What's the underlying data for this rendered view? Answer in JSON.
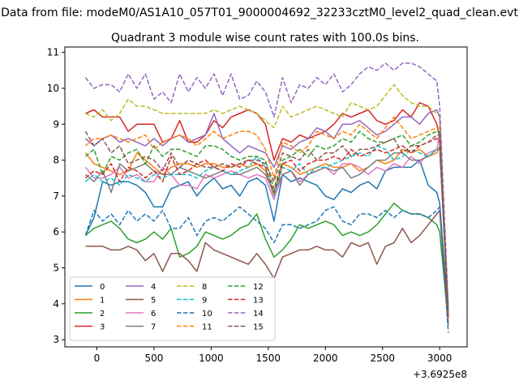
{
  "chart_data": {
    "type": "line",
    "suptitle": "Data from file: modeM0/AS1A10_057T01_9000004692_32233cztM0_level2_quad_clean.evt",
    "title": "Quadrant 3 module wise count rates with 100.0s bins.",
    "xlabel": "",
    "ylabel": "",
    "x_offset_label": "+3.6925e8",
    "xlim": [
      -280,
      3240
    ],
    "ylim": [
      2.8,
      11.15
    ],
    "xticks": [
      0,
      500,
      1000,
      1500,
      2000,
      2500,
      3000
    ],
    "xtick_labels": [
      "0",
      "500",
      "1000",
      "1500",
      "2000",
      "2500",
      "3000"
    ],
    "yticks": [
      3,
      4,
      5,
      6,
      7,
      8,
      9,
      10,
      11
    ],
    "ytick_labels": [
      "3",
      "4",
      "5",
      "6",
      "7",
      "8",
      "9",
      "10",
      "11"
    ],
    "x": [
      -100,
      -25,
      50,
      125,
      200,
      275,
      350,
      425,
      500,
      575,
      650,
      725,
      800,
      875,
      950,
      1025,
      1100,
      1175,
      1250,
      1325,
      1400,
      1475,
      1550,
      1625,
      1700,
      1775,
      1850,
      1925,
      2000,
      2075,
      2150,
      2225,
      2300,
      2375,
      2450,
      2525,
      2600,
      2675,
      2750,
      2825,
      2900,
      2975,
      3000,
      3075
    ],
    "legend_position": "lower-left",
    "legend_columns": 4,
    "series": [
      {
        "name": "0",
        "color": "#1f77b4",
        "dash": "solid",
        "values": [
          5.9,
          6.4,
          7.4,
          7.3,
          7.4,
          7.4,
          7.3,
          7.1,
          6.7,
          6.7,
          7.2,
          7.3,
          7.4,
          7.0,
          7.3,
          7.5,
          7.2,
          7.3,
          7.0,
          7.4,
          7.5,
          7.3,
          6.3,
          7.6,
          7.4,
          7.5,
          7.4,
          7.3,
          7.0,
          6.9,
          7.2,
          7.1,
          7.3,
          7.4,
          7.2,
          7.7,
          7.8,
          7.8,
          7.8,
          8.0,
          7.3,
          7.1,
          6.8,
          3.6
        ]
      },
      {
        "name": "1",
        "color": "#ff7f0e",
        "dash": "solid",
        "values": [
          8.2,
          7.9,
          7.8,
          7.7,
          7.6,
          7.7,
          8.2,
          8.0,
          7.8,
          7.6,
          7.8,
          7.9,
          7.9,
          7.8,
          7.9,
          7.9,
          7.8,
          7.8,
          7.9,
          7.8,
          7.9,
          7.7,
          7.0,
          7.9,
          7.8,
          7.6,
          7.7,
          7.8,
          7.9,
          7.8,
          7.8,
          7.9,
          7.7,
          7.8,
          8.0,
          7.9,
          8.0,
          8.3,
          8.2,
          8.3,
          8.1,
          8.2,
          8.4,
          3.7
        ]
      },
      {
        "name": "2",
        "color": "#2ca02c",
        "dash": "solid",
        "values": [
          5.9,
          6.1,
          6.2,
          6.3,
          6.1,
          5.8,
          5.7,
          5.8,
          6.0,
          5.8,
          6.1,
          5.3,
          5.4,
          5.6,
          6.0,
          5.9,
          5.8,
          5.9,
          6.1,
          6.2,
          6.5,
          5.8,
          5.3,
          5.5,
          5.8,
          6.2,
          6.1,
          6.2,
          6.3,
          6.2,
          5.9,
          6.0,
          5.9,
          6.0,
          6.2,
          6.5,
          6.8,
          6.6,
          6.5,
          6.5,
          6.4,
          6.2,
          6.0,
          3.5
        ]
      },
      {
        "name": "3",
        "color": "#d62728",
        "dash": "solid",
        "values": [
          9.3,
          9.4,
          9.2,
          9.2,
          9.2,
          8.8,
          9.0,
          9.0,
          9.0,
          8.5,
          8.6,
          9.1,
          8.5,
          8.5,
          8.7,
          9.1,
          8.9,
          9.2,
          9.3,
          9.4,
          9.3,
          9.0,
          8.0,
          8.6,
          8.5,
          8.7,
          8.6,
          8.7,
          8.8,
          9.0,
          9.3,
          9.2,
          9.3,
          9.4,
          9.1,
          9.0,
          9.1,
          9.4,
          9.2,
          9.6,
          9.5,
          9.0,
          8.6,
          3.8
        ]
      },
      {
        "name": "4",
        "color": "#9467bd",
        "dash": "solid",
        "values": [
          8.6,
          8.4,
          8.6,
          8.7,
          8.5,
          8.6,
          8.5,
          8.4,
          8.6,
          8.4,
          8.6,
          8.7,
          8.5,
          8.6,
          8.7,
          9.3,
          8.6,
          8.4,
          8.2,
          8.4,
          8.3,
          8.2,
          7.8,
          8.4,
          8.3,
          8.5,
          8.6,
          8.9,
          8.8,
          8.6,
          9.0,
          9.0,
          9.1,
          8.9,
          8.7,
          8.8,
          9.0,
          9.2,
          9.2,
          9.0,
          9.3,
          9.4,
          9.2,
          3.7
        ]
      },
      {
        "name": "5",
        "color": "#8c564b",
        "dash": "solid",
        "values": [
          5.6,
          5.6,
          5.6,
          5.5,
          5.5,
          5.6,
          5.5,
          5.2,
          5.4,
          4.9,
          5.4,
          5.4,
          5.2,
          4.9,
          5.7,
          5.5,
          5.4,
          5.3,
          5.2,
          5.1,
          5.4,
          5.1,
          4.7,
          5.3,
          5.4,
          5.5,
          5.5,
          5.6,
          5.5,
          5.5,
          5.3,
          5.7,
          5.6,
          5.7,
          5.1,
          5.6,
          5.7,
          6.1,
          5.7,
          5.9,
          6.2,
          6.5,
          6.6,
          3.4
        ]
      },
      {
        "name": "6",
        "color": "#e377c2",
        "dash": "solid",
        "values": [
          7.8,
          7.5,
          7.5,
          7.6,
          7.8,
          7.5,
          7.6,
          7.4,
          7.4,
          7.8,
          7.6,
          7.3,
          7.3,
          7.2,
          7.6,
          7.5,
          7.6,
          7.7,
          7.6,
          7.5,
          7.6,
          7.5,
          6.9,
          7.6,
          7.7,
          7.4,
          7.6,
          7.7,
          7.8,
          7.6,
          7.9,
          7.9,
          7.8,
          7.6,
          7.8,
          7.7,
          7.9,
          7.8,
          8.1,
          7.9,
          8.2,
          8.3,
          8.8,
          3.9
        ]
      },
      {
        "name": "7",
        "color": "#7f7f7f",
        "dash": "solid",
        "values": [
          7.6,
          7.4,
          7.7,
          7.1,
          7.9,
          7.7,
          7.8,
          7.9,
          7.7,
          7.6,
          7.6,
          7.8,
          7.7,
          7.6,
          7.5,
          7.6,
          7.7,
          7.6,
          7.6,
          7.7,
          7.8,
          7.6,
          7.1,
          7.6,
          7.7,
          7.3,
          7.6,
          7.7,
          7.8,
          7.7,
          7.8,
          7.5,
          7.6,
          7.8,
          8.0,
          8.0,
          8.2,
          8.2,
          8.0,
          8.0,
          8.1,
          8.3,
          8.3,
          3.8
        ]
      },
      {
        "name": "8",
        "color": "#bcbd22",
        "dash": "dashed",
        "values": [
          9.3,
          9.2,
          9.4,
          9.1,
          9.3,
          9.7,
          9.5,
          9.5,
          9.4,
          9.3,
          9.3,
          9.3,
          9.3,
          9.3,
          9.3,
          9.4,
          9.3,
          9.4,
          9.5,
          9.4,
          9.3,
          9.1,
          8.9,
          9.5,
          9.2,
          9.3,
          9.4,
          9.5,
          9.4,
          9.3,
          9.2,
          9.6,
          9.5,
          9.4,
          9.5,
          9.8,
          10.1,
          9.8,
          9.6,
          9.5,
          9.5,
          9.3,
          9.2,
          4.0
        ]
      },
      {
        "name": "9",
        "color": "#17becf",
        "dash": "dashed",
        "values": [
          7.4,
          7.6,
          7.4,
          7.5,
          7.3,
          7.6,
          7.5,
          7.4,
          7.6,
          7.5,
          7.6,
          7.6,
          7.6,
          7.5,
          7.7,
          7.8,
          7.7,
          7.6,
          7.7,
          7.8,
          8.1,
          7.8,
          7.0,
          7.8,
          7.7,
          7.9,
          7.6,
          7.8,
          7.8,
          7.9,
          8.0,
          8.1,
          8.2,
          8.1,
          8.4,
          8.3,
          8.0,
          8.1,
          8.3,
          8.2,
          8.1,
          8.3,
          8.4,
          3.7
        ]
      },
      {
        "name": "10",
        "color": "#1f77b4",
        "dash": "dashed",
        "values": [
          5.9,
          6.6,
          6.3,
          6.5,
          6.2,
          6.6,
          6.3,
          6.5,
          6.3,
          6.6,
          6.1,
          6.1,
          6.4,
          5.9,
          6.3,
          6.4,
          6.3,
          6.5,
          6.7,
          6.5,
          6.3,
          6.1,
          5.7,
          6.2,
          6.2,
          6.1,
          6.2,
          6.3,
          6.6,
          6.7,
          6.3,
          6.2,
          6.5,
          6.5,
          6.4,
          6.6,
          6.4,
          6.6,
          6.5,
          6.5,
          6.4,
          6.6,
          6.7,
          3.2
        ]
      },
      {
        "name": "11",
        "color": "#ff7f0e",
        "dash": "dashed",
        "values": [
          8.4,
          8.6,
          8.6,
          8.7,
          8.6,
          8.5,
          8.6,
          8.7,
          8.3,
          8.5,
          8.6,
          8.7,
          8.6,
          8.4,
          8.6,
          8.8,
          8.6,
          8.7,
          8.8,
          8.8,
          8.7,
          8.3,
          7.5,
          8.5,
          8.4,
          8.2,
          8.4,
          8.8,
          8.7,
          8.6,
          8.8,
          8.7,
          9.0,
          8.8,
          8.6,
          8.9,
          9.2,
          8.9,
          8.6,
          8.7,
          8.8,
          8.9,
          8.9,
          3.6
        ]
      },
      {
        "name": "12",
        "color": "#2ca02c",
        "dash": "dashed",
        "values": [
          8.1,
          8.3,
          7.6,
          8.1,
          8.0,
          8.2,
          8.3,
          7.9,
          8.4,
          8.1,
          8.3,
          8.3,
          8.2,
          8.1,
          8.4,
          8.4,
          8.3,
          8.1,
          8.0,
          8.1,
          8.1,
          8.0,
          7.2,
          8.0,
          8.1,
          8.3,
          8.1,
          8.4,
          8.3,
          8.4,
          8.6,
          8.5,
          8.8,
          8.6,
          8.5,
          8.5,
          8.6,
          8.7,
          8.4,
          8.5,
          8.7,
          8.8,
          8.8,
          3.7
        ]
      },
      {
        "name": "13",
        "color": "#d62728",
        "dash": "dashed",
        "values": [
          7.5,
          7.7,
          7.6,
          7.9,
          7.4,
          7.8,
          7.7,
          7.5,
          7.7,
          7.4,
          8.1,
          7.6,
          7.7,
          7.9,
          8.0,
          7.8,
          7.7,
          7.9,
          7.8,
          8.0,
          7.9,
          7.8,
          7.1,
          7.9,
          8.0,
          7.7,
          7.9,
          8.0,
          8.0,
          8.1,
          8.0,
          8.3,
          8.1,
          8.2,
          8.3,
          8.2,
          8.3,
          8.4,
          8.2,
          8.4,
          8.5,
          8.6,
          8.5,
          3.6
        ]
      },
      {
        "name": "14",
        "color": "#9467bd",
        "dash": "dashed",
        "values": [
          10.3,
          10.0,
          10.1,
          10.1,
          9.9,
          10.4,
          10.0,
          10.4,
          9.7,
          9.9,
          9.6,
          10.4,
          9.9,
          10.3,
          10.0,
          10.4,
          9.8,
          10.4,
          9.7,
          9.8,
          10.2,
          9.9,
          9.2,
          10.3,
          9.6,
          10.1,
          10.0,
          10.3,
          10.1,
          10.4,
          9.9,
          10.1,
          10.4,
          10.6,
          10.5,
          10.7,
          10.5,
          10.7,
          10.7,
          10.6,
          10.4,
          10.2,
          9.5,
          3.9
        ]
      },
      {
        "name": "15",
        "color": "#8c564b",
        "dash": "dashed",
        "values": [
          8.8,
          8.4,
          8.6,
          8.2,
          8.4,
          7.9,
          8.0,
          8.1,
          8.0,
          7.7,
          8.2,
          7.8,
          8.0,
          7.9,
          7.8,
          7.8,
          7.9,
          7.8,
          7.9,
          8.0,
          8.0,
          7.9,
          7.4,
          8.2,
          8.1,
          8.0,
          8.3,
          8.0,
          8.2,
          8.2,
          8.4,
          8.1,
          8.3,
          8.3,
          8.4,
          8.5,
          8.6,
          8.2,
          8.4,
          8.4,
          8.5,
          8.7,
          8.7,
          3.6
        ]
      }
    ]
  }
}
